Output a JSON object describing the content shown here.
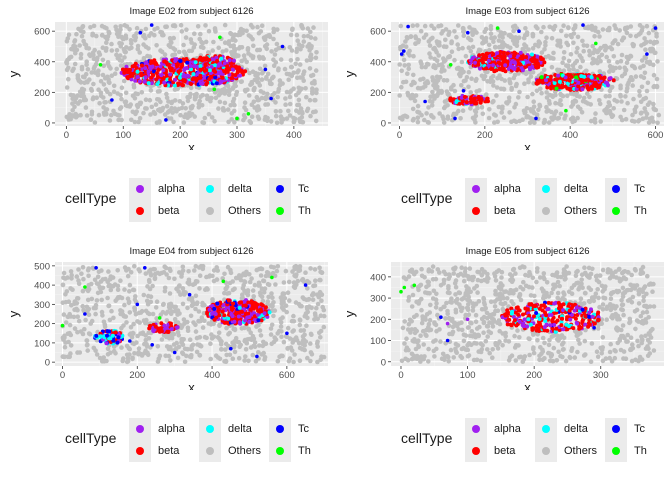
{
  "legend": {
    "title": "cellType",
    "items": [
      {
        "label": "alpha",
        "color": "#a020f0"
      },
      {
        "label": "beta",
        "color": "#ff0000"
      },
      {
        "label": "delta",
        "color": "#00ffff"
      },
      {
        "label": "Others",
        "color": "#bebebe"
      },
      {
        "label": "Tc",
        "color": "#0000ff"
      },
      {
        "label": "Th",
        "color": "#00ff00"
      }
    ]
  },
  "chart_data": [
    {
      "type": "scatter",
      "title": "Image E02 from subject 6126",
      "xlabel": "x",
      "ylabel": "y",
      "xlim": [
        -20,
        460
      ],
      "ylim": [
        -20,
        660
      ],
      "xticks": [
        0,
        100,
        200,
        300,
        400
      ],
      "yticks": [
        0,
        200,
        400,
        600
      ],
      "grid": true,
      "background": [
        [
          0,
          440
        ],
        [
          0,
          640
        ]
      ],
      "clusters": [
        {
          "cx": 205,
          "cy": 330,
          "rx": 110,
          "ry": 90,
          "mix": {
            "beta": 0.55,
            "alpha": 0.3,
            "delta": 0.1,
            "Tc": 0.05
          }
        },
        {
          "cx": 260,
          "cy": 380,
          "rx": 40,
          "ry": 60,
          "mix": {
            "beta": 0.5,
            "alpha": 0.4,
            "delta": 0.1
          }
        }
      ],
      "scattered": {
        "Tc": [
          [
            150,
            640
          ],
          [
            130,
            590
          ],
          [
            350,
            350
          ],
          [
            380,
            500
          ],
          [
            80,
            150
          ],
          [
            175,
            20
          ],
          [
            360,
            160
          ]
        ],
        "Th": [
          [
            300,
            30
          ],
          [
            320,
            60
          ],
          [
            270,
            560
          ],
          [
            60,
            380
          ],
          [
            260,
            220
          ]
        ]
      }
    },
    {
      "type": "scatter",
      "title": "Image E03 from subject 6126",
      "xlabel": "x",
      "ylabel": "y",
      "xlim": [
        -20,
        620
      ],
      "ylim": [
        -20,
        660
      ],
      "xticks": [
        0,
        200,
        400,
        600
      ],
      "yticks": [
        0,
        200,
        400,
        600
      ],
      "grid": true,
      "background": [
        [
          0,
          610
        ],
        [
          0,
          640
        ]
      ],
      "clusters": [
        {
          "cx": 250,
          "cy": 400,
          "rx": 90,
          "ry": 65,
          "mix": {
            "beta": 0.6,
            "alpha": 0.3,
            "delta": 0.1
          }
        },
        {
          "cx": 410,
          "cy": 270,
          "rx": 95,
          "ry": 55,
          "mix": {
            "beta": 0.6,
            "alpha": 0.25,
            "delta": 0.1,
            "Th": 0.05
          }
        },
        {
          "cx": 165,
          "cy": 150,
          "rx": 50,
          "ry": 30,
          "mix": {
            "beta": 0.7,
            "alpha": 0.25,
            "delta": 0.05
          }
        }
      ],
      "scattered": {
        "Tc": [
          [
            5,
            450
          ],
          [
            20,
            630
          ],
          [
            160,
            590
          ],
          [
            280,
            600
          ],
          [
            430,
            640
          ],
          [
            580,
            450
          ],
          [
            150,
            210
          ],
          [
            130,
            30
          ],
          [
            600,
            620
          ],
          [
            10,
            470
          ],
          [
            60,
            140
          ],
          [
            320,
            30
          ]
        ],
        "Th": [
          [
            120,
            380
          ],
          [
            390,
            80
          ],
          [
            230,
            620
          ],
          [
            460,
            520
          ]
        ]
      }
    },
    {
      "type": "scatter",
      "title": "Image E04 from subject 6126",
      "xlabel": "x",
      "ylabel": "y",
      "xlim": [
        -20,
        710
      ],
      "ylim": [
        -20,
        520
      ],
      "xticks": [
        0,
        200,
        400,
        600
      ],
      "yticks": [
        0,
        100,
        200,
        300,
        400,
        500
      ],
      "grid": true,
      "background": [
        [
          0,
          700
        ],
        [
          0,
          500
        ]
      ],
      "clusters": [
        {
          "cx": 470,
          "cy": 260,
          "rx": 85,
          "ry": 65,
          "mix": {
            "beta": 0.55,
            "alpha": 0.35,
            "delta": 0.05,
            "Tc": 0.05
          }
        },
        {
          "cx": 270,
          "cy": 180,
          "rx": 40,
          "ry": 25,
          "mix": {
            "beta": 0.6,
            "alpha": 0.3,
            "delta": 0.1
          }
        },
        {
          "cx": 125,
          "cy": 130,
          "rx": 38,
          "ry": 35,
          "mix": {
            "delta": 0.45,
            "beta": 0.2,
            "alpha": 0.15,
            "Tc": 0.2
          }
        }
      ],
      "scattered": {
        "Tc": [
          [
            90,
            490
          ],
          [
            220,
            490
          ],
          [
            60,
            250
          ],
          [
            200,
            300
          ],
          [
            180,
            110
          ],
          [
            340,
            350
          ],
          [
            300,
            50
          ],
          [
            520,
            30
          ],
          [
            600,
            150
          ],
          [
            650,
            400
          ],
          [
            450,
            70
          ],
          [
            240,
            90
          ]
        ],
        "Th": [
          [
            0,
            190
          ],
          [
            260,
            230
          ],
          [
            430,
            420
          ],
          [
            560,
            440
          ],
          [
            60,
            390
          ]
        ]
      }
    },
    {
      "type": "scatter",
      "title": "Image E05 from subject 6126",
      "xlabel": "x",
      "ylabel": "y",
      "xlim": [
        -15,
        395
      ],
      "ylim": [
        -20,
        470
      ],
      "xticks": [
        0,
        100,
        200,
        300
      ],
      "yticks": [
        0,
        100,
        200,
        300,
        400
      ],
      "grid": true,
      "background": [
        [
          0,
          380
        ],
        [
          0,
          450
        ]
      ],
      "clusters": [
        {
          "cx": 225,
          "cy": 210,
          "rx": 75,
          "ry": 70,
          "mix": {
            "beta": 0.65,
            "alpha": 0.2,
            "delta": 0.12,
            "Tc": 0.03
          }
        }
      ],
      "scattered": {
        "Tc": [
          [
            60,
            210
          ],
          [
            70,
            100
          ],
          [
            290,
            160
          ]
        ],
        "Th": [
          [
            5,
            350
          ],
          [
            20,
            360
          ],
          [
            0,
            330
          ]
        ],
        "alpha": [
          [
            70,
            180
          ],
          [
            100,
            200
          ]
        ]
      }
    }
  ]
}
